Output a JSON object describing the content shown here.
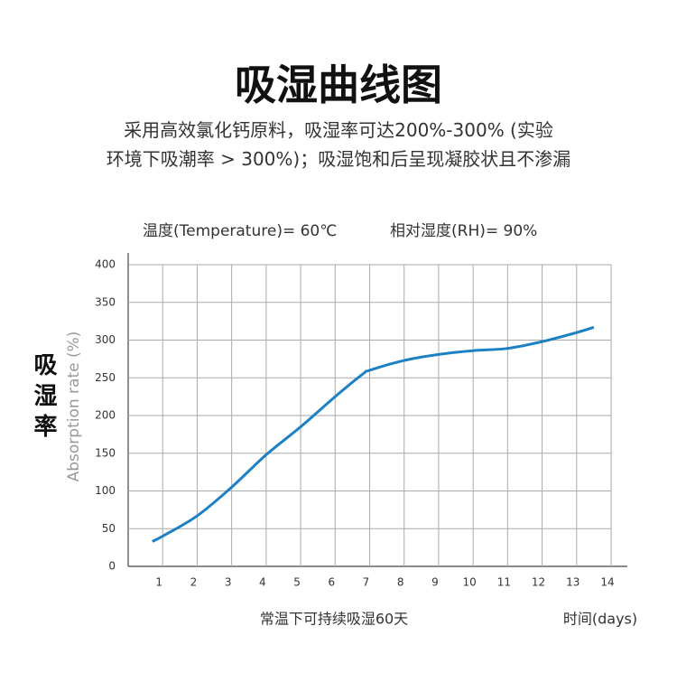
{
  "chart_data": {
    "type": "line",
    "title": "吸湿曲线图",
    "subtitle": [
      "采用高效氯化钙原料，吸湿率可达200%-300% (实验",
      "环境下吸潮率 > 300%)；吸湿饱和后呈现凝胶状且不渗漏"
    ],
    "conditions": [
      "温度(Temperature)= 60℃",
      "相对湿度(RH)= 90%"
    ],
    "y_label": "Absorption rate (%)",
    "y_label_cn": "吸湿率",
    "x_note": "常温下可持续吸湿60天",
    "x_label": "时间(days)",
    "x": [
      0.7,
      1,
      2,
      3,
      4,
      5,
      6,
      6.8,
      7,
      8,
      9,
      10,
      11,
      12,
      13,
      13.5
    ],
    "values": [
      33,
      40,
      67,
      105,
      148,
      185,
      225,
      255,
      260,
      273,
      281,
      286,
      289,
      298,
      310,
      317
    ],
    "color": "#1b80c4",
    "xlim": [
      0,
      14
    ],
    "xticks": [
      1,
      2,
      3,
      4,
      5,
      6,
      7,
      8,
      9,
      10,
      11,
      12,
      13,
      14
    ],
    "ylim": [
      0,
      400
    ],
    "yticks": [
      0,
      50,
      100,
      150,
      200,
      250,
      300,
      350,
      400
    ],
    "grid": true
  }
}
